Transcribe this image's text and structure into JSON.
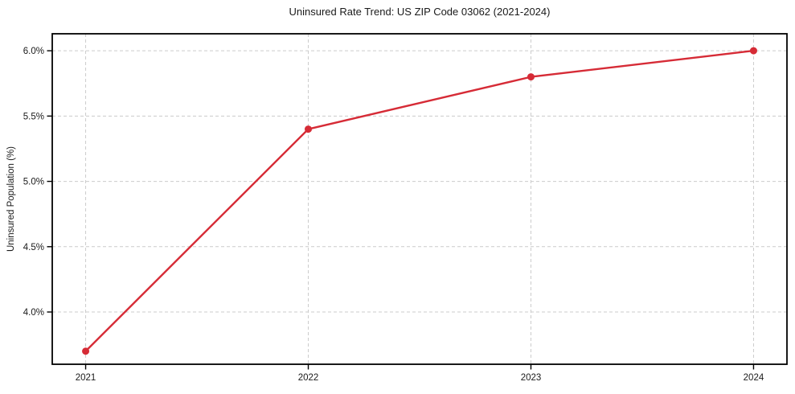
{
  "chart_data": {
    "type": "line",
    "title": "Uninsured Rate Trend: US ZIP Code 03062 (2021-2024)",
    "xlabel": "",
    "ylabel": "Uninsured Population (%)",
    "x": [
      2021,
      2022,
      2023,
      2024
    ],
    "x_tick_labels": [
      "2021",
      "2022",
      "2023",
      "2024"
    ],
    "values": [
      3.7,
      5.4,
      5.8,
      6.0
    ],
    "y_ticks": [
      4.0,
      4.5,
      5.0,
      5.5,
      6.0
    ],
    "y_tick_labels": [
      "4.0%",
      "4.5%",
      "5.0%",
      "5.5%",
      "6.0%"
    ],
    "xlim": [
      2020.85,
      2024.15
    ],
    "ylim": [
      3.6,
      6.13
    ],
    "grid": true,
    "grid_style": "dashed",
    "legend": "none",
    "line_color": "#d62b36",
    "marker_color": "#d62b36",
    "grid_color": "#cccccc",
    "axis_color": "#000000",
    "background_color": "#ffffff"
  }
}
